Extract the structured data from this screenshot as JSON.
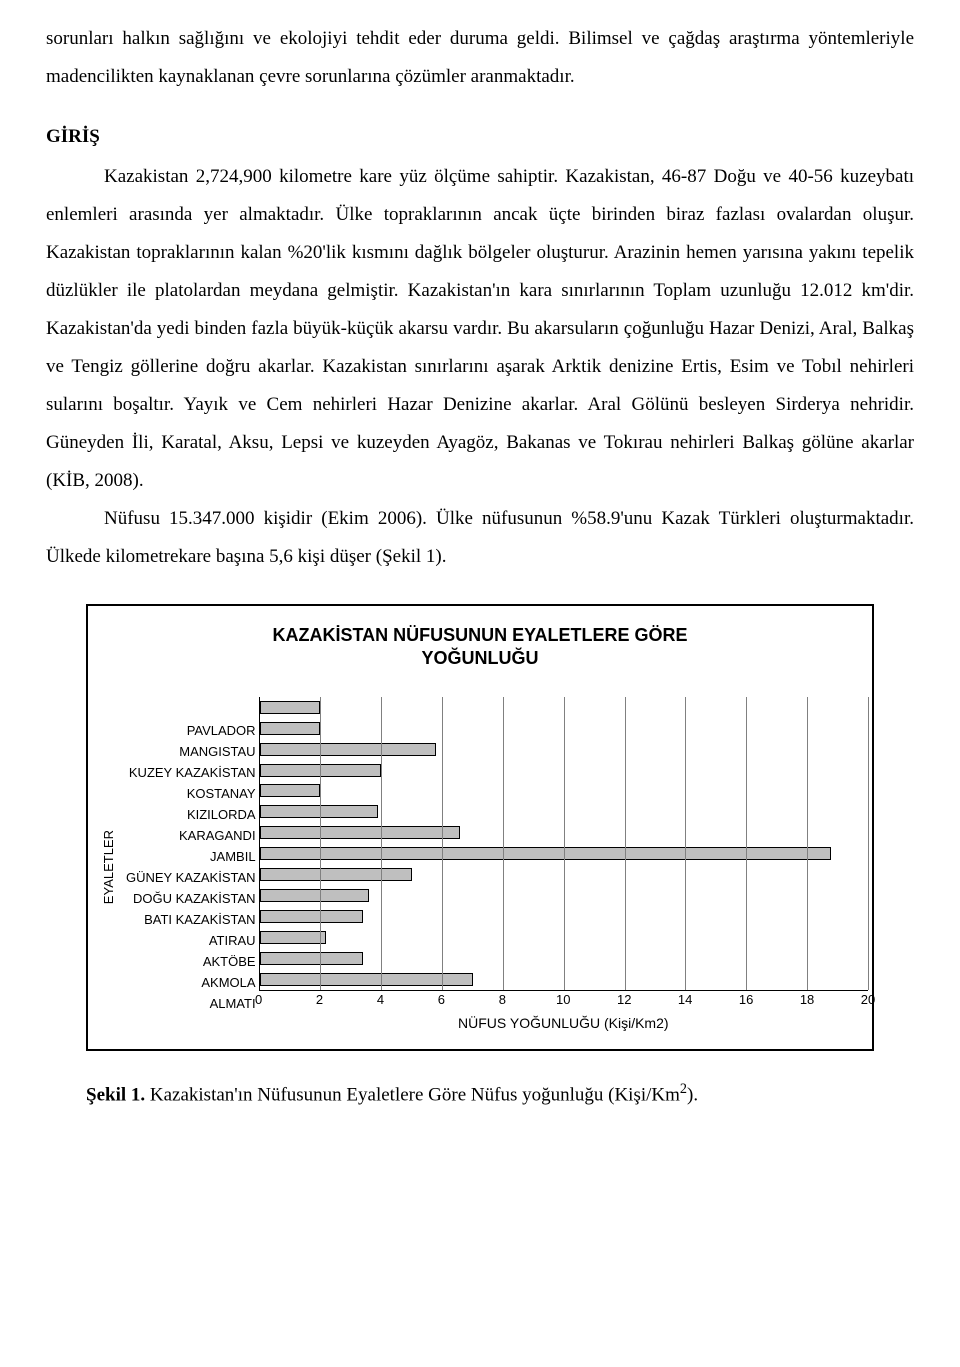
{
  "intro_paragraph": "sorunları halkın sağlığını ve ekolojiyi tehdit eder duruma geldi. Bilimsel ve çağdaş araştırma yöntemleriyle madencilikten kaynaklanan çevre sorunlarına çözümler aranmaktadır.",
  "section_heading": "GİRİŞ",
  "paragraph1": "Kazakistan 2,724,900 kilometre kare yüz ölçüme sahiptir. Kazakistan, 46-87 Doğu ve 40-56 kuzeybatı enlemleri arasında yer almaktadır. Ülke topraklarının ancak üçte birinden biraz fazlası ovalardan oluşur. Kazakistan topraklarının kalan %20'lik kısmını dağlık bölgeler oluşturur. Arazinin hemen yarısına yakını tepelik düzlükler ile platolardan meydana gelmiştir. Kazakistan'ın kara sınırlarının Toplam uzunluğu 12.012 km'dir. Kazakistan'da yedi binden fazla büyük-küçük akarsu vardır. Bu akarsuların çoğunluğu Hazar Denizi, Aral, Balkaş ve Tengiz göllerine doğru akarlar. Kazakistan sınırlarını aşarak Arktik denizine Ertis, Esim ve Tobıl nehirleri sularını boşaltır. Yayık ve Cem nehirleri Hazar Denizine akarlar. Aral Gölünü besleyen Sirderya nehridir. Güneyden İli, Karatal, Aksu, Lepsi ve kuzeyden Ayagöz, Bakanas ve Tokırau nehirleri Balkaş gölüne akarlar (KİB, 2008).",
  "paragraph2": "Nüfusu 15.347.000 kişidir (Ekim 2006). Ülke nüfusunun %58.9'unu Kazak Türkleri oluşturmaktadır. Ülkede kilometrekare başına 5,6 kişi düşer (Şekil 1).",
  "chart": {
    "title_line1": "KAZAKİSTAN NÜFUSUNUN EYALETLERE GÖRE",
    "title_line2": "YOĞUNLUĞU",
    "ylabel": "EYALETLER",
    "xlabel": "NÜFUS YOĞUNLUĞU (Kişi/Km2)",
    "categories": [
      "PAVLADOR",
      "MANGISTAU",
      "KUZEY KAZAKİSTAN",
      "KOSTANAY",
      "KIZILORDA",
      "KARAGANDI",
      "JAMBIL",
      "GÜNEY KAZAKİSTAN",
      "DOĞU KAZAKİSTAN",
      "BATI KAZAKİSTAN",
      "ATIRAU",
      "AKTÖBE",
      "AKMOLA",
      "ALMATI"
    ],
    "values": [
      2.0,
      2.0,
      5.8,
      4.0,
      2.0,
      3.9,
      6.6,
      18.8,
      5.0,
      3.6,
      3.4,
      2.2,
      3.4,
      7.0
    ],
    "bar_fill": "#bfbfbf",
    "bar_border": "#000000",
    "grid_color": "#808080",
    "background": "#ffffff",
    "xmin": 0,
    "xmax": 20,
    "xtick_step": 2,
    "xticks": [
      0,
      2,
      4,
      6,
      8,
      10,
      12,
      14,
      16,
      18,
      20
    ]
  },
  "figure": {
    "label": "Şekil 1.",
    "text_part1": " Kazakistan'ın Nüfusunun Eyaletlere Göre Nüfus yoğunluğu  (Kişi/Km",
    "superscript": "2",
    "text_part2": ")."
  }
}
